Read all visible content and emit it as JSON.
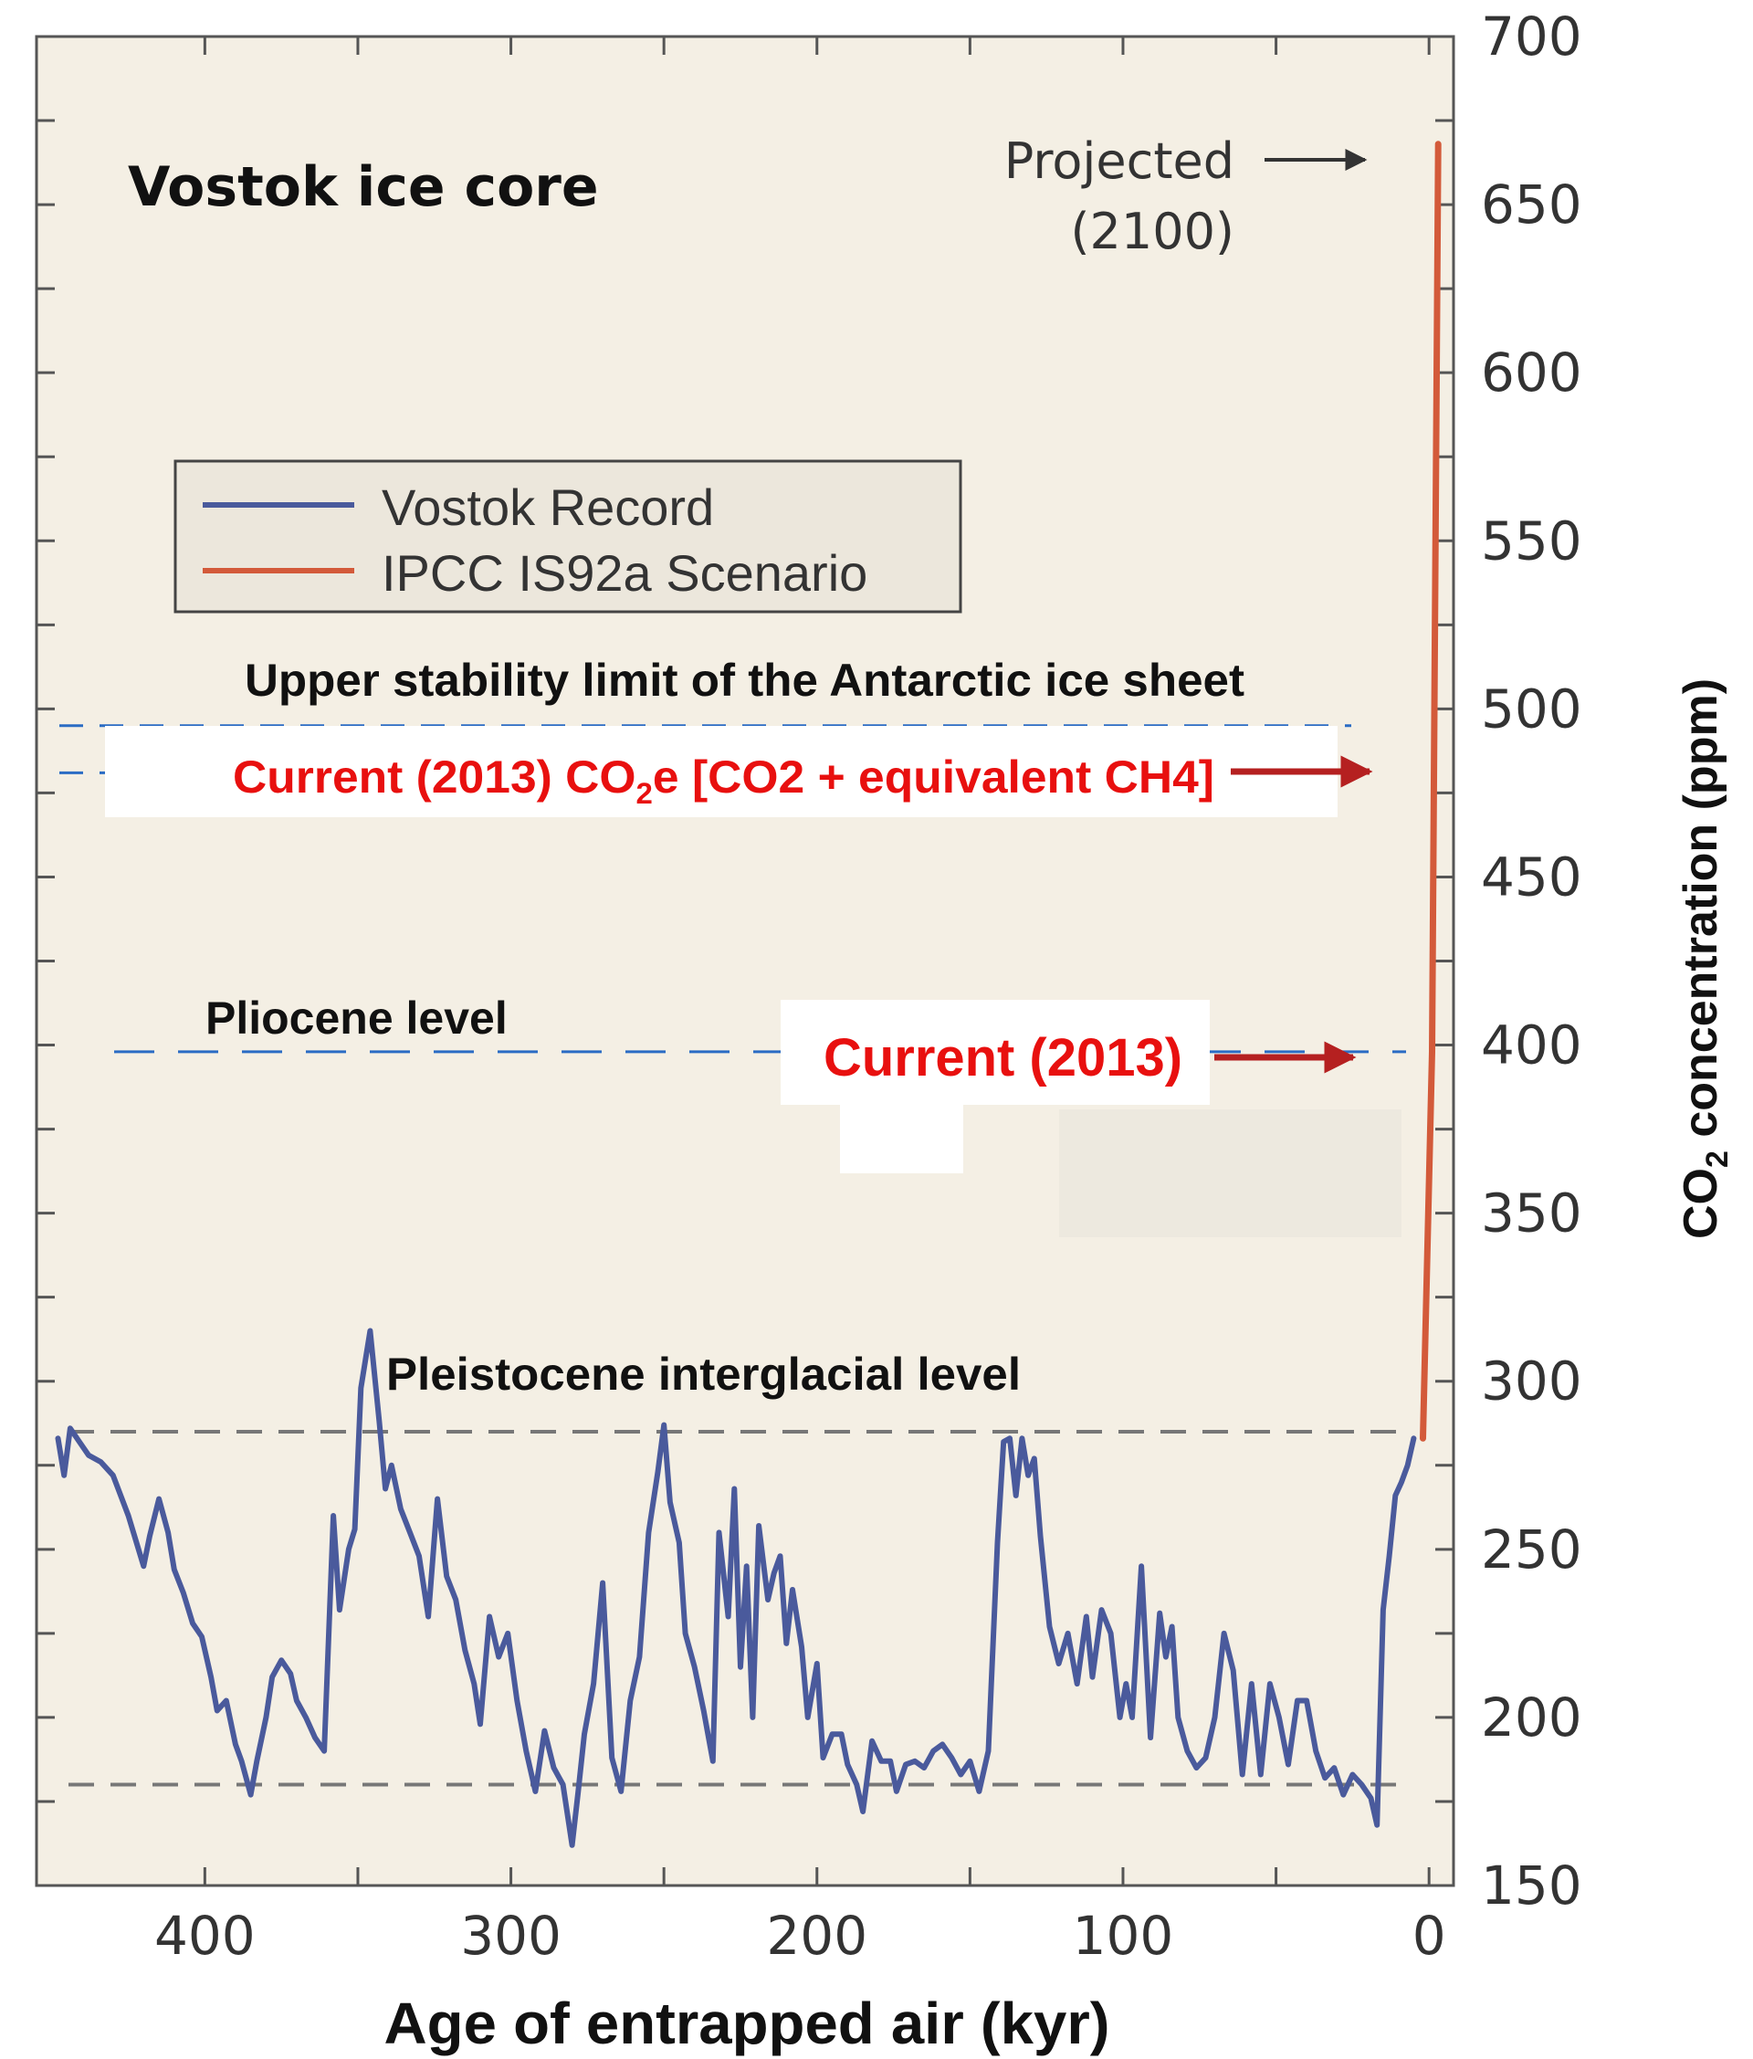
{
  "chart_data": {
    "type": "line",
    "title": "Vostok ice core",
    "xlabel": "Age of entrapped air (kyr)",
    "ylabel": {
      "prefix": "CO",
      "subscript": "2",
      "suffix": " concentration (ppm)"
    },
    "xlim": [
      455,
      -8
    ],
    "ylim": [
      150,
      700
    ],
    "x_ticks": [
      400,
      300,
      200,
      100,
      0
    ],
    "y_ticks": [
      150,
      200,
      250,
      300,
      350,
      400,
      450,
      500,
      550,
      600,
      650,
      700
    ],
    "legend": {
      "position": "upper-left",
      "entries": [
        {
          "label": "Vostok Record",
          "color": "#4a5a9c"
        },
        {
          "label": "IPCC IS92a Scenario",
          "color": "#d35a3a"
        }
      ]
    },
    "series": [
      {
        "name": "Vostok Record",
        "color": "#4a5a9c",
        "x": [
          448,
          446,
          444,
          441,
          438,
          434,
          430,
          425,
          420,
          418,
          415,
          412,
          410,
          407,
          404,
          401,
          398,
          396,
          393,
          390,
          388,
          385,
          383,
          380,
          378,
          375,
          372,
          370,
          367,
          364,
          361,
          358,
          356,
          353,
          351,
          349,
          346,
          343,
          341,
          339,
          336,
          333,
          330,
          327,
          324,
          321,
          318,
          315,
          312,
          310,
          307,
          304,
          301,
          298,
          295,
          292,
          289,
          286,
          283,
          280,
          278,
          276,
          273,
          270,
          267,
          264,
          261,
          258,
          255,
          252,
          250,
          248,
          245,
          243,
          240,
          237,
          234,
          232,
          229,
          227,
          225,
          223,
          221,
          219,
          216,
          214,
          212,
          210,
          208,
          205,
          203,
          200,
          198,
          195,
          192,
          190,
          187,
          185,
          182,
          179,
          176,
          174,
          171,
          168,
          165,
          162,
          159,
          156,
          153,
          150,
          147,
          144,
          141,
          139,
          137,
          135,
          133,
          131,
          129,
          127,
          124,
          121,
          118,
          115,
          112,
          110,
          107,
          104,
          101,
          99,
          97,
          94,
          91,
          88,
          86,
          84,
          82,
          79,
          76,
          73,
          70,
          67,
          64,
          61,
          58,
          55,
          52,
          49,
          46,
          43,
          40,
          37,
          34,
          31,
          28,
          25,
          22,
          19,
          17,
          15,
          13,
          11,
          9,
          7,
          5
        ],
        "y": [
          283,
          272,
          286,
          282,
          278,
          276,
          272,
          260,
          245,
          254,
          265,
          255,
          244,
          237,
          228,
          224,
          212,
          202,
          205,
          192,
          187,
          177,
          187,
          200,
          212,
          217,
          213,
          205,
          200,
          194,
          190,
          260,
          232,
          250,
          256,
          298,
          315,
          288,
          268,
          275,
          262,
          255,
          248,
          230,
          265,
          242,
          235,
          220,
          210,
          198,
          230,
          218,
          225,
          205,
          190,
          178,
          196,
          185,
          180,
          162,
          178,
          195,
          210,
          240,
          188,
          178,
          205,
          218,
          255,
          273,
          287,
          264,
          252,
          225,
          215,
          202,
          187,
          255,
          230,
          268,
          215,
          245,
          200,
          257,
          235,
          243,
          248,
          222,
          238,
          221,
          200,
          216,
          188,
          195,
          195,
          186,
          180,
          172,
          193,
          187,
          187,
          178,
          186,
          187,
          185,
          190,
          192,
          188,
          183,
          187,
          178,
          190,
          252,
          282,
          283,
          266,
          283,
          272,
          277,
          254,
          227,
          216,
          225,
          210,
          230,
          212,
          232,
          225,
          200,
          210,
          200,
          245,
          194,
          231,
          218,
          227,
          200,
          190,
          185,
          188,
          200,
          225,
          214,
          183,
          210,
          183,
          210,
          200,
          186,
          205,
          205,
          190,
          182,
          185,
          177,
          183,
          180,
          176,
          168,
          232,
          248,
          266,
          270,
          275,
          283
        ]
      },
      {
        "name": "IPCC IS92a Scenario",
        "color": "#d35a3a",
        "x": [
          2,
          -1,
          -3
        ],
        "y": [
          283,
          398,
          668
        ]
      }
    ],
    "reference_lines": [
      {
        "label": "Upper stability limit of the Antarctic ice sheet",
        "y": 495,
        "color": "#2b6cc4"
      },
      {
        "label": "",
        "y": 481,
        "color": "#2b6cc4"
      },
      {
        "label": "Pliocene level",
        "y": 398,
        "color": "#2b6cc4"
      },
      {
        "label": "Pleistocene interglacial level",
        "y": 285,
        "color": "#777777"
      },
      {
        "label": "",
        "y": 180,
        "color": "#777777"
      }
    ],
    "annotations": {
      "projected": {
        "line1": "Projected",
        "line2": "(2100)"
      },
      "current_co2e": {
        "prefix": "Current (2013) CO",
        "subscript": "2",
        "suffix": "e  [CO2 + equivalent CH4]"
      },
      "current": "Current (2013)"
    },
    "colors": {
      "plot_background": "#f4efe4",
      "annotation_red": "#e8100f",
      "arrow_red": "#b52020"
    }
  }
}
